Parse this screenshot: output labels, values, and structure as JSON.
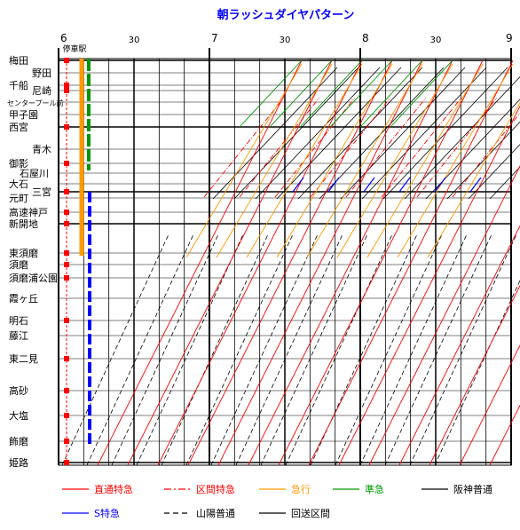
{
  "title": "朝ラッシュダイヤパターン",
  "stop_header": "停車駅",
  "time_axis": {
    "hour_labels": [
      "6",
      "7",
      "8",
      "9"
    ],
    "half_hour_labels": [
      "30",
      "30",
      "30"
    ]
  },
  "stations": [
    {
      "name": "梅田"
    },
    {
      "name": "野田"
    },
    {
      "name": "千船"
    },
    {
      "name": "尼崎"
    },
    {
      "name": "センタープール前"
    },
    {
      "name": "甲子園"
    },
    {
      "name": "西宮"
    },
    {
      "name": "青木"
    },
    {
      "name": "御影"
    },
    {
      "name": "石屋川"
    },
    {
      "name": "大石"
    },
    {
      "name": "三宮"
    },
    {
      "name": "元町"
    },
    {
      "name": "高速神戸"
    },
    {
      "name": "新開地"
    },
    {
      "name": "東須磨"
    },
    {
      "name": "須磨"
    },
    {
      "name": "須磨浦公園"
    },
    {
      "name": "霞ヶ丘"
    },
    {
      "name": "明石"
    },
    {
      "name": "藤江"
    },
    {
      "name": "東二見"
    },
    {
      "name": "高砂"
    },
    {
      "name": "大塩"
    },
    {
      "name": "飾磨"
    },
    {
      "name": "姫路"
    }
  ],
  "legend": [
    {
      "label": "直通特急",
      "color": "#ff0000",
      "style": "solid"
    },
    {
      "label": "区間特急",
      "color": "#ff0000",
      "style": "dashdot"
    },
    {
      "label": "急行",
      "color": "#ff9900",
      "style": "solid"
    },
    {
      "label": "準急",
      "color": "#009900",
      "style": "solid"
    },
    {
      "label": "阪神普通",
      "color": "#000000",
      "style": "solid"
    },
    {
      "label": "S特急",
      "color": "#0000ff",
      "style": "solid"
    },
    {
      "label": "山陽普通",
      "color": "#000000",
      "style": "dashed"
    },
    {
      "label": "回送区間",
      "color": "#000000",
      "style": "deadhead"
    }
  ],
  "colors": {
    "limited_express": "#ff0000",
    "express": "#ff9900",
    "semi_express": "#009900",
    "local": "#000000",
    "s_limited": "#0000ff",
    "title": "#0000ff"
  }
}
